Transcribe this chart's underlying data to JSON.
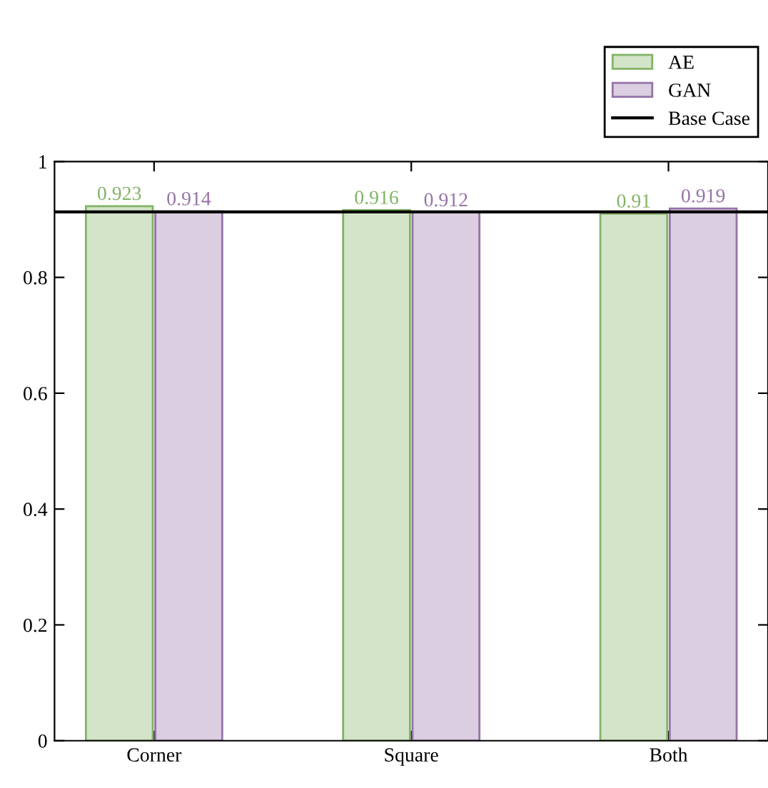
{
  "chart_data": {
    "type": "bar",
    "categories": [
      "Corner",
      "Square",
      "Both"
    ],
    "series": [
      {
        "name": "AE",
        "color": "#82b366",
        "values": [
          0.923,
          0.916,
          0.91
        ]
      },
      {
        "name": "GAN",
        "color": "#9673a6",
        "values": [
          0.914,
          0.912,
          0.919
        ]
      }
    ],
    "data_labels": true,
    "ylim": [
      0,
      1
    ],
    "yticks": [
      0,
      0.2,
      0.4,
      0.6,
      0.8,
      1
    ],
    "ref_lines": [
      {
        "axis": "y",
        "value": 0.913,
        "label": "Base Case",
        "color": "#000000",
        "line_style": "solid"
      }
    ],
    "legend": "top right",
    "grid": false
  }
}
